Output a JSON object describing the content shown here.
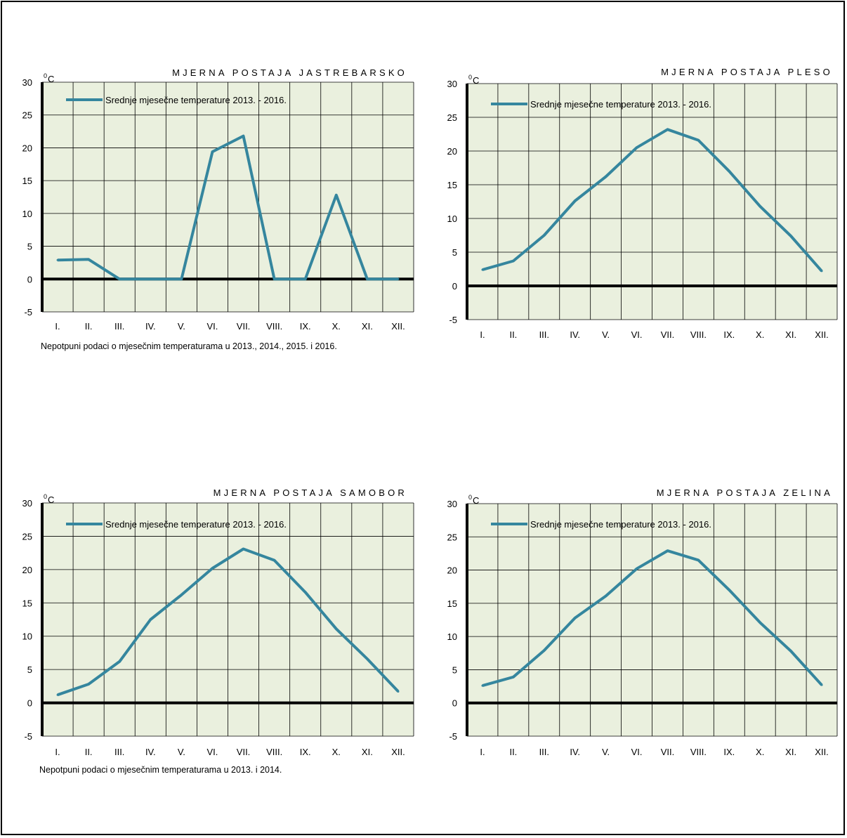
{
  "chart_data": [
    {
      "type": "line",
      "title": "MJERNA POSTAJA JASTREBARSKO",
      "unit": "C",
      "unit_sup": "0",
      "categories": [
        "I.",
        "II.",
        "III.",
        "IV.",
        "V.",
        "VI.",
        "VII.",
        "VIII.",
        "IX.",
        "X.",
        "XI.",
        "XII."
      ],
      "series": [
        {
          "name": "Srednje mjesečne temperature 2013. - 2016.",
          "values": [
            2.9,
            3.0,
            0,
            0,
            0,
            19.4,
            21.8,
            0,
            0,
            12.8,
            0,
            0
          ]
        }
      ],
      "ylim": [
        -5,
        30
      ],
      "yticks": [
        30,
        25,
        20,
        15,
        10,
        5,
        0,
        -5
      ],
      "ytick_labels": [
        "30",
        "25",
        "20",
        "15",
        "10",
        "5",
        "0",
        "-5"
      ],
      "grid": true,
      "line_color": "#35869e",
      "plot_bg": "#eaf0de",
      "footnote": "Nepotpuni podaci o mjesečnim temperaturama u 2013., 2014., 2015. i 2016."
    },
    {
      "type": "line",
      "title": "MJERNA POSTAJA PLESO",
      "unit": "C",
      "unit_sup": "0",
      "categories": [
        "I.",
        "II.",
        "III.",
        "IV.",
        "V.",
        "VI.",
        "VII.",
        "VIII.",
        "IX.",
        "X.",
        "XI.",
        "XII."
      ],
      "series": [
        {
          "name": "Srednje mjesečne temperature 2013. - 2016.",
          "values": [
            2.4,
            3.7,
            7.5,
            12.6,
            16.2,
            20.5,
            23.2,
            21.6,
            17.0,
            11.8,
            7.4,
            2.2
          ]
        }
      ],
      "ylim": [
        -5,
        30
      ],
      "yticks": [
        30,
        25,
        20,
        15,
        10,
        5,
        0,
        -5
      ],
      "ytick_labels": [
        "30",
        "25",
        "20",
        "15",
        "10",
        "5",
        "0",
        "-5"
      ],
      "grid": true,
      "line_color": "#35869e",
      "plot_bg": "#eaf0de",
      "footnote": ""
    },
    {
      "type": "line",
      "title": "MJERNA POSTAJA SAMOBOR",
      "unit": "C",
      "unit_sup": "0",
      "categories": [
        "I.",
        "II.",
        "III.",
        "IV.",
        "V.",
        "VI.",
        "VII.",
        "VIII.",
        "IX.",
        "X.",
        "XI.",
        "XII."
      ],
      "series": [
        {
          "name": "Srednje mjesečne temperature 2013. - 2016.",
          "values": [
            1.2,
            2.8,
            6.2,
            12.5,
            16.2,
            20.2,
            23.1,
            21.4,
            16.6,
            11.1,
            6.6,
            1.7
          ]
        }
      ],
      "ylim": [
        -5,
        30
      ],
      "yticks": [
        30,
        25,
        20,
        15,
        10,
        5,
        0,
        -5
      ],
      "ytick_labels": [
        "30",
        "25",
        "20",
        "15",
        "10",
        "5",
        "0",
        "-5"
      ],
      "grid": true,
      "line_color": "#35869e",
      "plot_bg": "#eaf0de",
      "footnote": "Nepotpuni podaci o mjesečnim temperaturama u 2013. i 2014."
    },
    {
      "type": "line",
      "title": "MJERNA POSTAJA ZELINA",
      "unit": "C",
      "unit_sup": "0",
      "categories": [
        "I.",
        "II.",
        "III.",
        "IV.",
        "V.",
        "VI.",
        "VII.",
        "VIII.",
        "IX.",
        "X.",
        "XI.",
        "XII."
      ],
      "series": [
        {
          "name": "Srednje mjesečne temperature 2013. - 2016.",
          "values": [
            2.6,
            3.9,
            7.9,
            12.8,
            16.1,
            20.2,
            22.9,
            21.5,
            17.0,
            12.1,
            7.8,
            2.7
          ]
        }
      ],
      "ylim": [
        -5,
        30
      ],
      "yticks": [
        30,
        25,
        20,
        15,
        10,
        5,
        0,
        -5
      ],
      "ytick_labels": [
        "30",
        "25",
        "20",
        "15",
        "10",
        "5",
        "0",
        "-5"
      ],
      "grid": true,
      "line_color": "#35869e",
      "plot_bg": "#eaf0de",
      "footnote": ""
    }
  ]
}
